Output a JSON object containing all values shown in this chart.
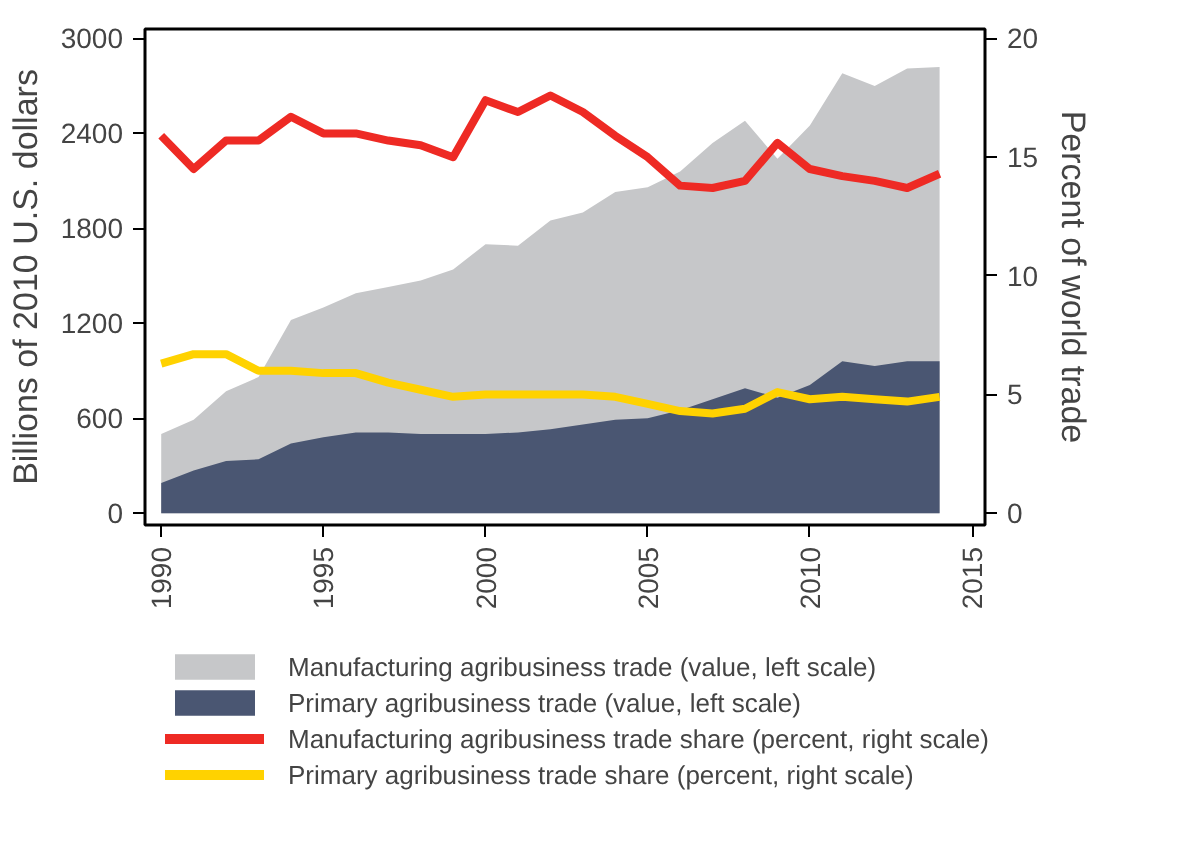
{
  "chart_data": {
    "type": "area",
    "x": [
      1990,
      1991,
      1992,
      1993,
      1994,
      1995,
      1996,
      1997,
      1998,
      1999,
      2000,
      2001,
      2002,
      2003,
      2004,
      2005,
      2006,
      2007,
      2008,
      2009,
      2010,
      2011,
      2012,
      2013,
      2014
    ],
    "ylabel": "Billions of 2010 U.S. dollars",
    "y2label": "Percent of world trade",
    "xlim": [
      1989.5,
      2015.4
    ],
    "xticks": [
      1990,
      1995,
      2000,
      2005,
      2010,
      2015
    ],
    "ylim": [
      -75,
      3060
    ],
    "yticks": [
      0,
      600,
      1200,
      1800,
      2400,
      3000
    ],
    "y2lim": [
      -0.5,
      20.4
    ],
    "y2ticks": [
      0,
      5,
      10,
      15,
      20
    ],
    "legend": "bottom",
    "grid": false,
    "series": [
      {
        "name": "Manufacturing agribusiness trade (value, left scale)",
        "color": "#c6c7c9",
        "values": [
          500,
          590,
          770,
          860,
          1220,
          1300,
          1390,
          1430,
          1470,
          1540,
          1700,
          1690,
          1850,
          1900,
          2030,
          2060,
          2160,
          2340,
          2480,
          2240,
          2450,
          2780,
          2700,
          2810,
          2820
        ]
      },
      {
        "name": "Primary agribusiness trade (value, left scale)",
        "color": "#4a5672",
        "values": [
          190,
          270,
          330,
          340,
          440,
          480,
          510,
          510,
          500,
          500,
          500,
          510,
          530,
          560,
          590,
          600,
          650,
          720,
          790,
          730,
          810,
          960,
          930,
          960,
          960
        ]
      },
      {
        "name": "Manufacturing agribusiness trade share (percent, right scale)",
        "type": "line",
        "axis": "y2",
        "color": "#ee2a24",
        "values": [
          15.9,
          14.5,
          15.7,
          15.7,
          16.7,
          16.0,
          16.0,
          15.7,
          15.5,
          15.0,
          17.4,
          16.9,
          17.6,
          16.9,
          15.9,
          15.0,
          13.8,
          13.7,
          14.0,
          15.6,
          14.5,
          14.2,
          14.0,
          13.7,
          14.3
        ]
      },
      {
        "name": "Primary agribusiness trade share (percent, right scale)",
        "type": "line",
        "axis": "y2",
        "color": "#ffd200",
        "values": [
          6.3,
          6.7,
          6.7,
          6.0,
          6.0,
          5.9,
          5.9,
          5.5,
          5.2,
          4.9,
          5.0,
          5.0,
          5.0,
          5.0,
          4.9,
          4.6,
          4.3,
          4.2,
          4.4,
          5.1,
          4.8,
          4.9,
          4.8,
          4.7,
          4.9
        ]
      }
    ]
  }
}
